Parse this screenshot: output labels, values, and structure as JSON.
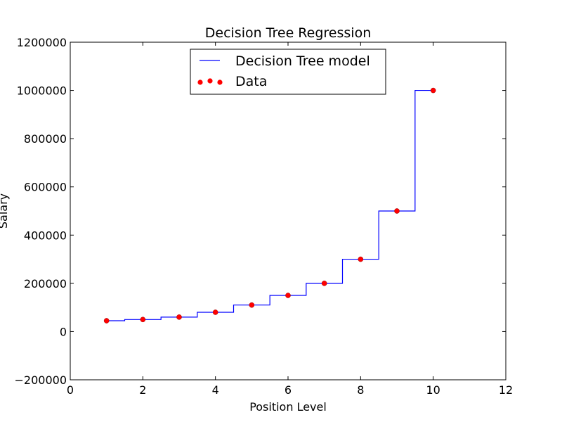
{
  "chart_data": {
    "type": "line",
    "title": "Decision Tree Regression",
    "xlabel": "Position Level",
    "ylabel": "Salary",
    "xlim": [
      0,
      12
    ],
    "ylim": [
      -200000,
      1200000
    ],
    "xticks": [
      0,
      2,
      4,
      6,
      8,
      10,
      12
    ],
    "yticks": [
      -200000,
      0,
      200000,
      400000,
      600000,
      800000,
      1000000,
      1200000
    ],
    "grid": false,
    "legend_position": "top-center",
    "series": [
      {
        "name": "Decision Tree model",
        "kind": "step-line",
        "color": "#0000ff",
        "x": [
          1,
          1.5,
          1.5,
          2.5,
          2.5,
          3.5,
          3.5,
          4.5,
          4.5,
          5.5,
          5.5,
          6.5,
          6.5,
          7.5,
          7.5,
          8.5,
          8.5,
          9.5,
          9.5,
          10
        ],
        "y": [
          45000,
          45000,
          50000,
          50000,
          60000,
          60000,
          80000,
          80000,
          110000,
          110000,
          150000,
          150000,
          200000,
          200000,
          300000,
          300000,
          500000,
          500000,
          1000000,
          1000000
        ]
      },
      {
        "name": "Data",
        "kind": "scatter",
        "color": "#ff0000",
        "x": [
          1,
          2,
          3,
          4,
          5,
          6,
          7,
          8,
          9,
          10
        ],
        "y": [
          45000,
          50000,
          60000,
          80000,
          110000,
          150000,
          200000,
          300000,
          500000,
          1000000
        ]
      }
    ]
  }
}
